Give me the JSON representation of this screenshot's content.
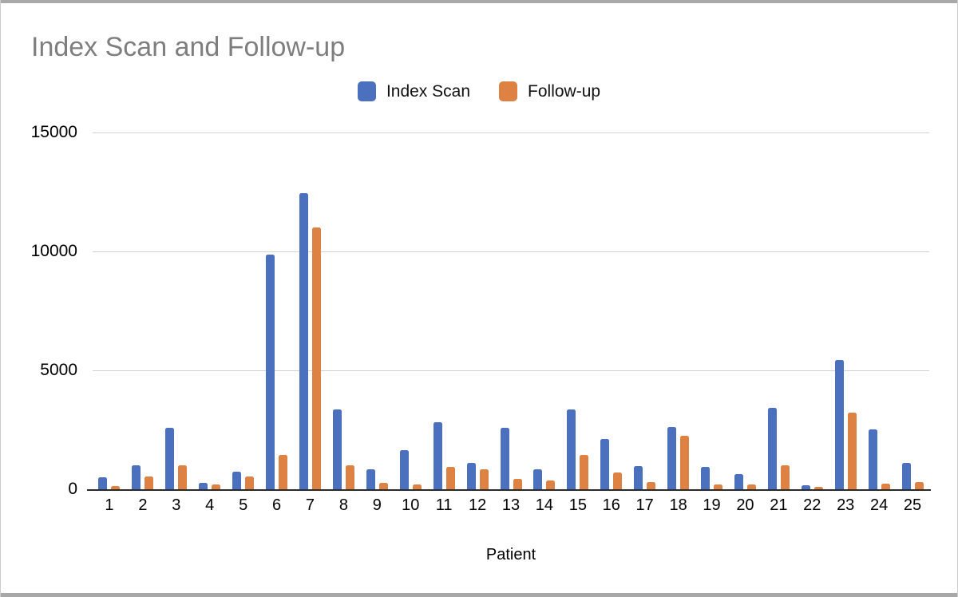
{
  "frame": {
    "color": "#a8a8a8"
  },
  "chart_data": {
    "type": "bar",
    "title": "Index Scan and Follow-up",
    "xlabel": "Patient",
    "ylabel": "",
    "grid": true,
    "legend_position": "top-center",
    "ylim": [
      0,
      15000
    ],
    "yticks": [
      0,
      5000,
      10000,
      15000
    ],
    "categories": [
      "1",
      "2",
      "3",
      "4",
      "5",
      "6",
      "7",
      "8",
      "9",
      "10",
      "11",
      "12",
      "13",
      "14",
      "15",
      "16",
      "17",
      "18",
      "19",
      "20",
      "21",
      "22",
      "23",
      "24",
      "25"
    ],
    "series": [
      {
        "name": "Index Scan",
        "color": "#4b70bd",
        "values": [
          500,
          1000,
          2600,
          280,
          730,
          9850,
          12450,
          3350,
          850,
          1650,
          2830,
          1110,
          2600,
          850,
          3340,
          2130,
          980,
          2620,
          930,
          650,
          3430,
          170,
          5430,
          2510,
          1100
        ]
      },
      {
        "name": "Follow-up",
        "color": "#de8244",
        "values": [
          150,
          530,
          1000,
          200,
          530,
          1460,
          11000,
          1000,
          270,
          200,
          950,
          850,
          450,
          380,
          1440,
          710,
          310,
          2240,
          200,
          190,
          1000,
          100,
          3220,
          220,
          300
        ]
      }
    ],
    "colors": {
      "title_text": "#7e7e7e",
      "gridline": "#d2d2d2",
      "axis_line": "#2b2b2b",
      "tick_text": "#000000"
    }
  }
}
